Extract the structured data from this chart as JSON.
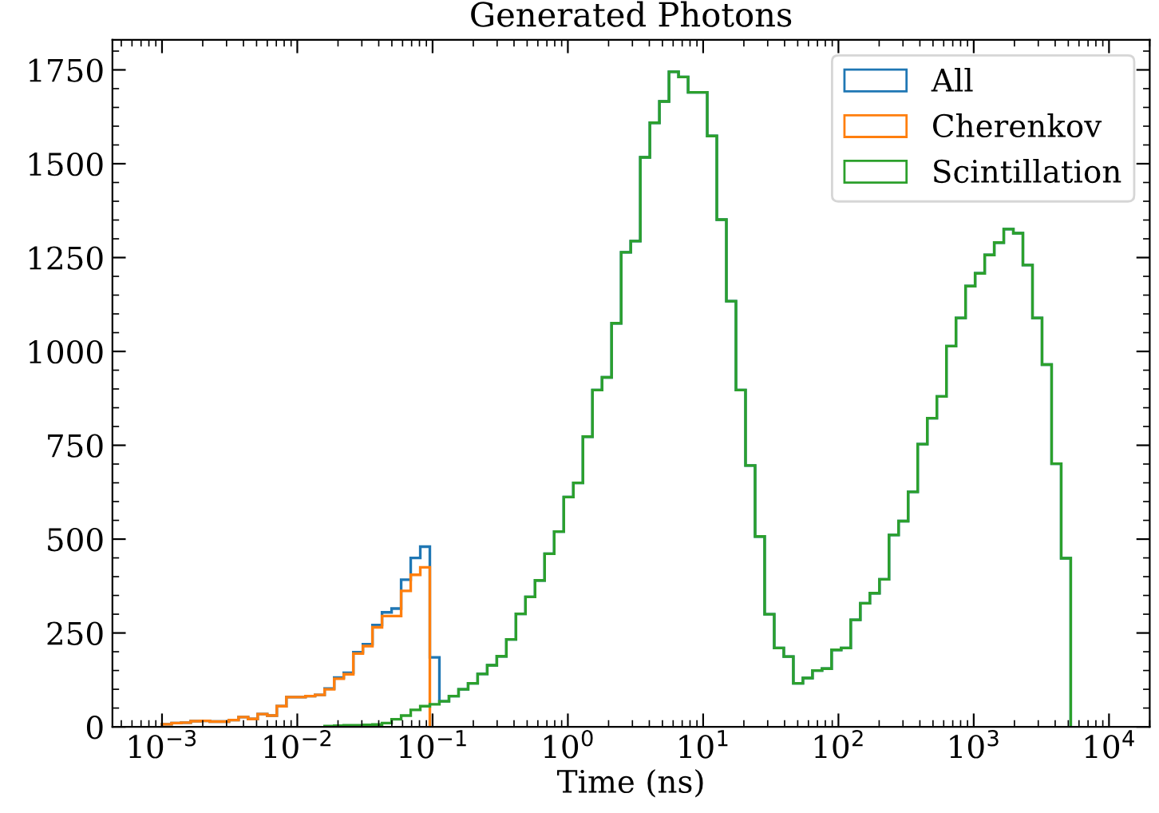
{
  "chart_data": {
    "type": "histogram",
    "title": "Generated Photons",
    "xlabel": "Time (ns)",
    "log": "x",
    "bins": [
      0.001,
      0.001177,
      0.001385,
      0.00163,
      0.001918,
      0.002257,
      0.002656,
      0.003126,
      0.003679,
      0.004329,
      0.005095,
      0.005995,
      0.007055,
      0.008303,
      0.00977,
      0.0115,
      0.01353,
      0.01592,
      0.01874,
      0.02205,
      0.02595,
      0.03054,
      0.03594,
      0.04229,
      0.04977,
      0.05857,
      0.06893,
      0.08111,
      0.09546,
      0.1123,
      0.1322,
      0.1556,
      0.1831,
      0.2154,
      0.2535,
      0.2984,
      0.3511,
      0.4132,
      0.4863,
      0.5722,
      0.6734,
      0.7925,
      0.9327,
      1.098,
      1.292,
      1.52,
      1.789,
      2.105,
      2.477,
      2.915,
      3.431,
      4.037,
      4.751,
      5.591,
      6.579,
      7.743,
      9.112,
      10.72,
      12.62,
      14.85,
      17.48,
      20.57,
      24.2,
      28.48,
      33.52,
      39.45,
      46.42,
      54.63,
      64.29,
      75.66,
      89.03,
      104.8,
      123.3,
      145.1,
      170.8,
      201.0,
      236.5,
      278.3,
      327.5,
      385.4,
      453.6,
      533.8,
      628.2,
      739.3,
      870.0,
      1024,
      1205,
      1418,
      1668,
      1963,
      2310,
      2719,
      3199,
      3765,
      4431,
      5214
    ],
    "series": [
      {
        "name": "All",
        "color": "#1f77b4",
        "values": [
          7,
          10,
          11,
          15,
          16,
          14,
          14,
          18,
          26,
          21,
          34,
          30,
          55,
          79,
          79,
          82,
          85,
          102,
          131,
          144,
          199,
          220,
          271,
          305,
          315,
          392,
          450,
          480,
          185,
          68,
          82,
          100,
          116,
          141,
          164,
          188,
          233,
          301,
          346,
          390,
          461,
          520,
          612,
          650,
          773,
          897,
          931,
          1075,
          1264,
          1294,
          1517,
          1609,
          1666,
          1745,
          1731,
          1690,
          1690,
          1574,
          1351,
          1134,
          897,
          696,
          507,
          300,
          210,
          187,
          116,
          130,
          150,
          155,
          205,
          210,
          285,
          329,
          356,
          393,
          511,
          548,
          626,
          753,
          822,
          880,
          1014,
          1089,
          1174,
          1208,
          1257,
          1290,
          1326,
          1315,
          1230,
          1089,
          965,
          701,
          449
        ]
      },
      {
        "name": "Cherenkov",
        "color": "#ff7f0e",
        "bins": [
          0.001,
          0.001177,
          0.001385,
          0.00163,
          0.001918,
          0.002257,
          0.002656,
          0.003126,
          0.003679,
          0.004329,
          0.005095,
          0.005995,
          0.007055,
          0.008303,
          0.00977,
          0.0115,
          0.01353,
          0.01592,
          0.01874,
          0.02205,
          0.02595,
          0.03054,
          0.03594,
          0.04229,
          0.04977,
          0.05857,
          0.06893,
          0.08111,
          0.09546
        ],
        "values": [
          7,
          10,
          11,
          15,
          16,
          14,
          14,
          18,
          26,
          21,
          34,
          30,
          55,
          79,
          79,
          82,
          85,
          100,
          128,
          140,
          195,
          215,
          265,
          295,
          295,
          362,
          405,
          425
        ]
      },
      {
        "name": "Scintillation",
        "color": "#2ca02c",
        "bins": [
          0.01592,
          0.01874,
          0.02205,
          0.02595,
          0.03054,
          0.03594,
          0.04229,
          0.04977,
          0.05857,
          0.06893,
          0.08111,
          0.09546,
          0.1123,
          0.1322,
          0.1556,
          0.1831,
          0.2154,
          0.2535,
          0.2984,
          0.3511,
          0.4132,
          0.4863,
          0.5722,
          0.6734,
          0.7925,
          0.9327,
          1.098,
          1.292,
          1.52,
          1.789,
          2.105,
          2.477,
          2.915,
          3.431,
          4.037,
          4.751,
          5.591,
          6.579,
          7.743,
          9.112,
          10.72,
          12.62,
          14.85,
          17.48,
          20.57,
          24.2,
          28.48,
          33.52,
          39.45,
          46.42,
          54.63,
          64.29,
          75.66,
          89.03,
          104.8,
          123.3,
          145.1,
          170.8,
          201.0,
          236.5,
          278.3,
          327.5,
          385.4,
          453.6,
          533.8,
          628.2,
          739.3,
          870.0,
          1024,
          1205,
          1418,
          1668,
          1963,
          2310,
          2719,
          3199,
          3765,
          4431,
          5214
        ],
        "values": [
          2,
          3,
          4,
          4,
          5,
          6,
          10,
          20,
          30,
          45,
          55,
          60,
          68,
          82,
          100,
          116,
          141,
          164,
          188,
          233,
          301,
          346,
          390,
          461,
          520,
          612,
          650,
          773,
          897,
          931,
          1075,
          1264,
          1294,
          1517,
          1609,
          1666,
          1745,
          1731,
          1690,
          1690,
          1574,
          1351,
          1134,
          897,
          696,
          507,
          300,
          210,
          187,
          116,
          130,
          150,
          155,
          205,
          210,
          285,
          329,
          356,
          393,
          511,
          548,
          626,
          753,
          822,
          880,
          1014,
          1089,
          1174,
          1208,
          1257,
          1290,
          1326,
          1315,
          1230,
          1089,
          965,
          701,
          449
        ]
      }
    ],
    "xlim": [
      0.00043,
      20000
    ],
    "xticks": [
      {
        "value": 0.001,
        "label": "10$^{−3}$"
      },
      {
        "value": 0.01,
        "label": "10$^{−2}$"
      },
      {
        "value": 0.1,
        "label": "10$^{−1}$"
      },
      {
        "value": 1,
        "label": "10$^{0}$"
      },
      {
        "value": 10,
        "label": "10$^{1}$"
      },
      {
        "value": 100,
        "label": "10$^{2}$"
      },
      {
        "value": 1000,
        "label": "10$^{3}$"
      },
      {
        "value": 10000,
        "label": "10$^{4}$"
      }
    ],
    "ylim": [
      0,
      1830
    ],
    "yticks": [
      0,
      250,
      500,
      750,
      1000,
      1250,
      1500,
      1750
    ],
    "grid": false,
    "legend": "top right"
  }
}
